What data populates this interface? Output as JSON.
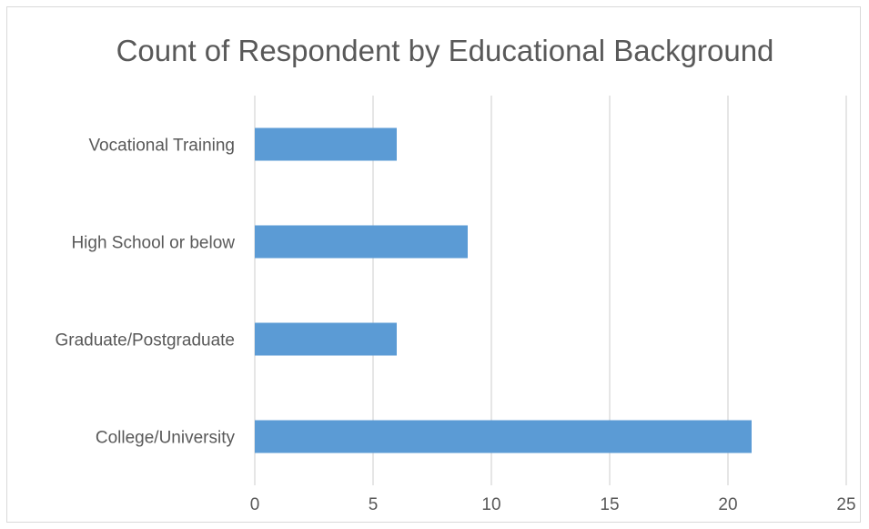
{
  "chart_data": {
    "type": "bar",
    "orientation": "horizontal",
    "title": "Count of Respondent by Educational Background",
    "xlabel": "",
    "ylabel": "",
    "categories": [
      "Vocational Training",
      "High School or below",
      "Graduate/Postgraduate",
      "College/University"
    ],
    "values": [
      6,
      9,
      6,
      21
    ],
    "xlim": [
      0,
      25
    ],
    "xticks": [
      "0",
      "5",
      "10",
      "15",
      "20",
      "25"
    ],
    "grid": "vertical",
    "legend": "none",
    "bar_color": "#5b9bd5"
  }
}
